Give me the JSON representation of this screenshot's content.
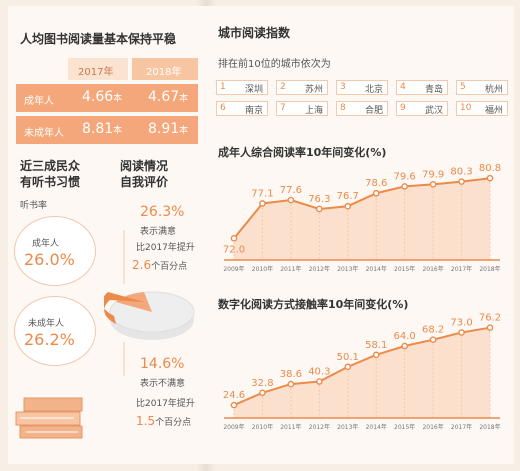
{
  "left": {
    "title": "人均图书阅读量基本保持平稳",
    "table": {
      "years": [
        "2017年",
        "2018年"
      ],
      "rows": [
        {
          "label": "成年人",
          "v2017": "4.66",
          "v2018": "4.67",
          "unit": "本"
        },
        {
          "label": "未成年人",
          "v2017": "8.81",
          "v2018": "8.91",
          "unit": "本"
        }
      ]
    },
    "listening": {
      "title_line1": "近三成民众",
      "title_line2": "有听书习惯",
      "subtitle": "听书率",
      "adult_label": "成年人",
      "adult_value": "26.0%",
      "minor_label": "未成年人",
      "minor_value": "26.2%"
    },
    "self_eval": {
      "title_line1": "阅读情况",
      "title_line2": "自我评价",
      "satisfied_pct": "26.3%",
      "satisfied_label": "表示满意",
      "satisfied_change_prefix": "比2017年提升",
      "satisfied_change_value": "2.6",
      "satisfied_change_unit": "个百分点",
      "unsatisfied_pct": "14.6%",
      "unsatisfied_label": "表示不满意",
      "unsatisfied_change_prefix": "比2017年提升",
      "unsatisfied_change_value": "1.5",
      "unsatisfied_change_unit": "个百分点"
    }
  },
  "right": {
    "title": "城市阅读指数",
    "subtitle": "排在前10位的城市依次为",
    "cities": [
      {
        "n": "1",
        "name": "深圳"
      },
      {
        "n": "2",
        "name": "苏州"
      },
      {
        "n": "3",
        "name": "北京"
      },
      {
        "n": "4",
        "name": "青岛"
      },
      {
        "n": "5",
        "name": "杭州"
      },
      {
        "n": "6",
        "name": "南京"
      },
      {
        "n": "7",
        "name": "上海"
      },
      {
        "n": "8",
        "name": "合肥"
      },
      {
        "n": "9",
        "name": "武汉"
      },
      {
        "n": "10",
        "name": "福州"
      }
    ]
  },
  "colors": {
    "accent": "#ec8a4a",
    "light": "#f8c5a2",
    "background": "#fdf8f4"
  },
  "chart_data": [
    {
      "type": "line",
      "title": "成年人综合阅读率10年间变化(%)",
      "x": [
        "2009年",
        "2010年",
        "2011年",
        "2012年",
        "2013年",
        "2014年",
        "2015年",
        "2016年",
        "2017年",
        "2018年"
      ],
      "values": [
        72.0,
        77.1,
        77.6,
        76.3,
        76.7,
        78.6,
        79.6,
        79.9,
        80.3,
        80.8
      ],
      "labels": [
        "72.0",
        "77.1",
        "77.6",
        "76.3",
        "76.7",
        "78.6",
        "79.6",
        "79.9",
        "80.3",
        "80.8"
      ],
      "ylim": [
        70,
        82
      ]
    },
    {
      "type": "line",
      "title": "数字化阅读方式接触率10年间变化(%)",
      "x": [
        "2009年",
        "2010年",
        "2011年",
        "2012年",
        "2013年",
        "2014年",
        "2015年",
        "2016年",
        "2017年",
        "2018年"
      ],
      "values": [
        24.6,
        32.8,
        38.6,
        40.3,
        50.1,
        58.1,
        64.0,
        68.2,
        73.0,
        76.2
      ],
      "labels": [
        "24.6",
        "32.8",
        "38.6",
        "40.3",
        "50.1",
        "58.1",
        "64.0",
        "68.2",
        "73.0",
        "76.2"
      ],
      "ylim": [
        20,
        80
      ]
    }
  ]
}
